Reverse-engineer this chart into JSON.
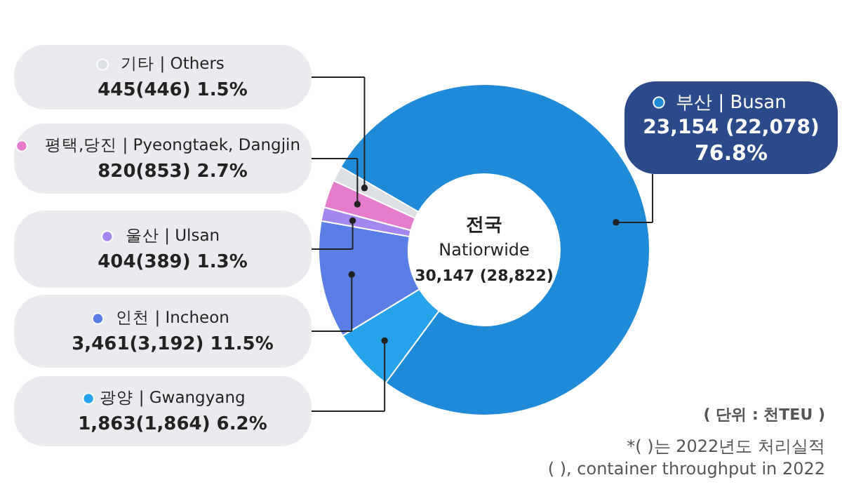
{
  "chart_data": {
    "type": "donut",
    "categories": [
      "부산 | Busan",
      "광양 | Gwangyang",
      "인천 | Incheon",
      "울산 | Ulsan",
      "평택,당진 | Pyeongtaek, Dangjin",
      "기타 | Others"
    ],
    "values": [
      23154,
      1863,
      3461,
      404,
      820,
      445
    ],
    "legend": "left",
    "colors": [
      "#1f8ad8",
      "#26a3ea",
      "#5b7de6",
      "#a386ee",
      "#e57ccc",
      "#dcdfe4"
    ],
    "value_labels": [
      "23,154 (22,078) 76.8%",
      "1,863(1,864) 6.2%",
      "3,461(3,192) 11.5%",
      "404(389) 1.3%",
      "820(853) 2.7%",
      "445(446) 1.5%"
    ],
    "annotations": [
      "전국",
      "Natiorwide",
      "30,147 (28,822)",
      "( 단위 : 천TEU )",
      "*( )는 2022년도 처리실적",
      "( ), container throughput in 2022"
    ]
  }
}
